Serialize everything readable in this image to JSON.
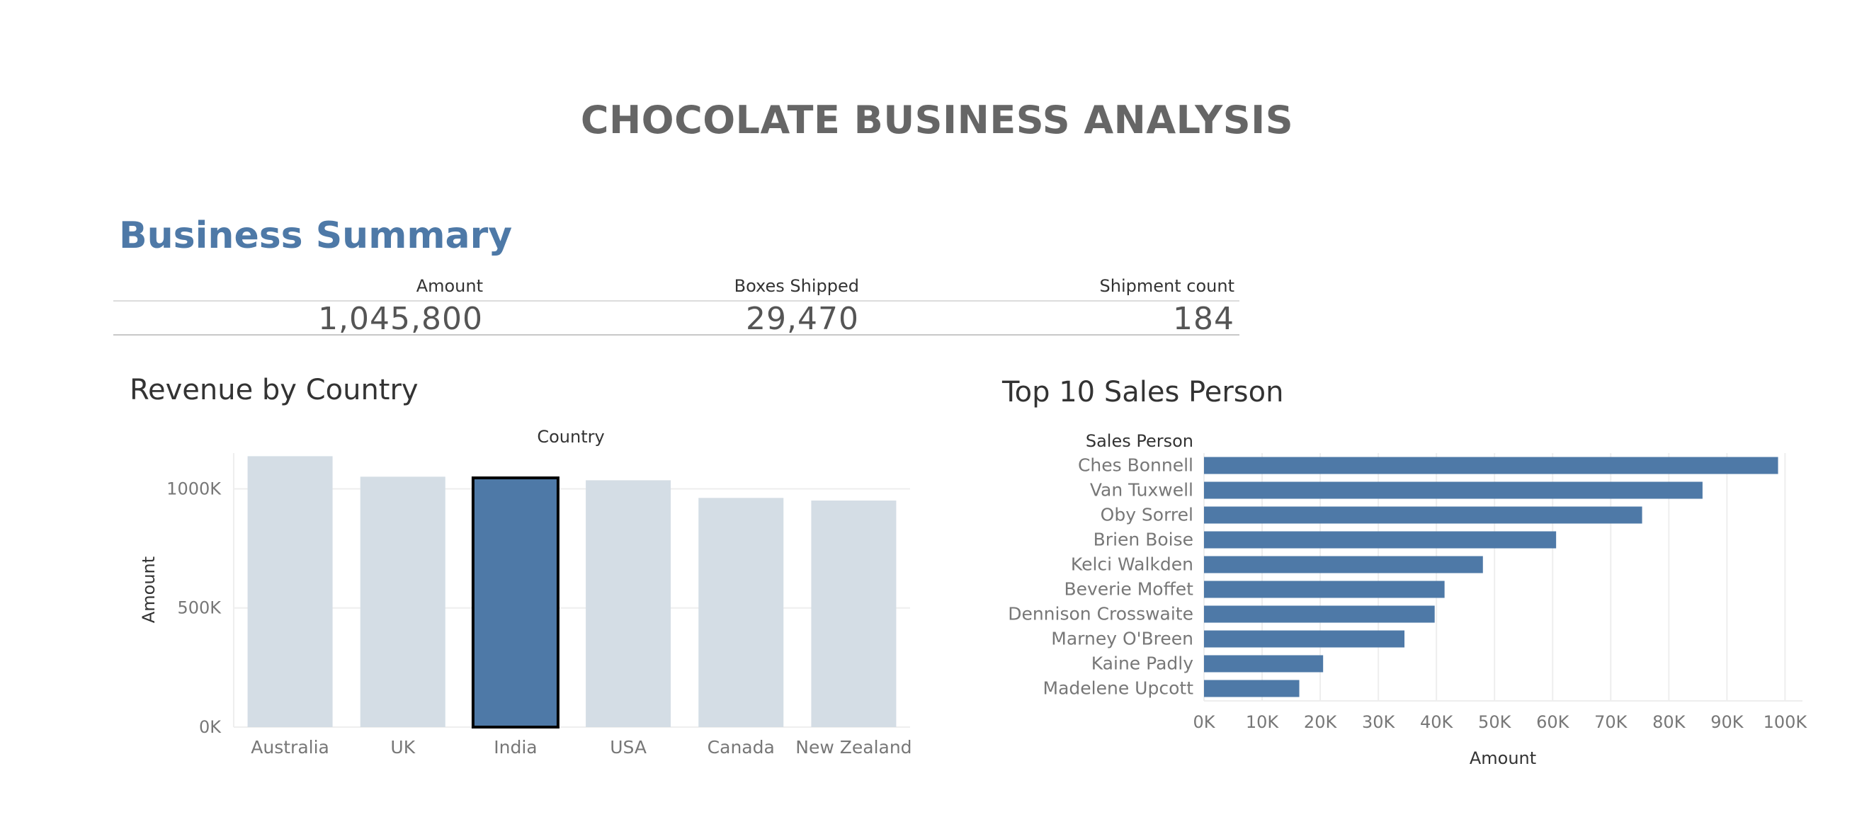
{
  "dashboard": {
    "title": "CHOCOLATE BUSINESS ANALYSIS"
  },
  "summary": {
    "heading": "Business Summary",
    "kpis": [
      {
        "label": "Amount",
        "value": "1,045,800"
      },
      {
        "label": "Boxes Shipped",
        "value": "29,470"
      },
      {
        "label": "Shipment count",
        "value": "184"
      }
    ]
  },
  "panels": {
    "revenue_title": "Revenue by Country",
    "sales_title": "Top 10 Sales Person"
  },
  "colors": {
    "accent": "#4e79a7",
    "muted_bar": "#d4dde5",
    "grid": "#eeeeee",
    "selected_outline": "#000000"
  },
  "chart_data": [
    {
      "type": "bar",
      "orientation": "vertical",
      "title": "Revenue by Country",
      "column_header": "Country",
      "ylabel": "Amount",
      "categories": [
        "Australia",
        "UK",
        "India",
        "USA",
        "Canada",
        "New Zealand"
      ],
      "values": [
        1137000,
        1051000,
        1046000,
        1036000,
        962000,
        951000
      ],
      "selected": "India",
      "ylim": [
        0,
        1150000
      ],
      "yticks": [
        0,
        500000,
        1000000
      ],
      "ytick_labels": [
        "0K",
        "500K",
        "1000K"
      ],
      "grid": true
    },
    {
      "type": "bar",
      "orientation": "horizontal",
      "title": "Top 10 Sales Person",
      "row_header": "Sales Person",
      "xlabel": "Amount",
      "categories": [
        "Ches Bonnell",
        "Van Tuxwell",
        "Oby Sorrel",
        "Brien Boise",
        "Kelci Walkden",
        "Beverie Moffet",
        "Dennison Crosswaite",
        "Marney O'Breen",
        "Kaine Padly",
        "Madelene Upcott"
      ],
      "values": [
        98800,
        85800,
        75400,
        60600,
        48000,
        41400,
        39700,
        34500,
        20500,
        16400
      ],
      "xlim": [
        0,
        103000
      ],
      "xticks": [
        0,
        10000,
        20000,
        30000,
        40000,
        50000,
        60000,
        70000,
        80000,
        90000,
        100000
      ],
      "xtick_labels": [
        "0K",
        "10K",
        "20K",
        "30K",
        "40K",
        "50K",
        "60K",
        "70K",
        "80K",
        "90K",
        "100K"
      ],
      "grid": true
    }
  ]
}
